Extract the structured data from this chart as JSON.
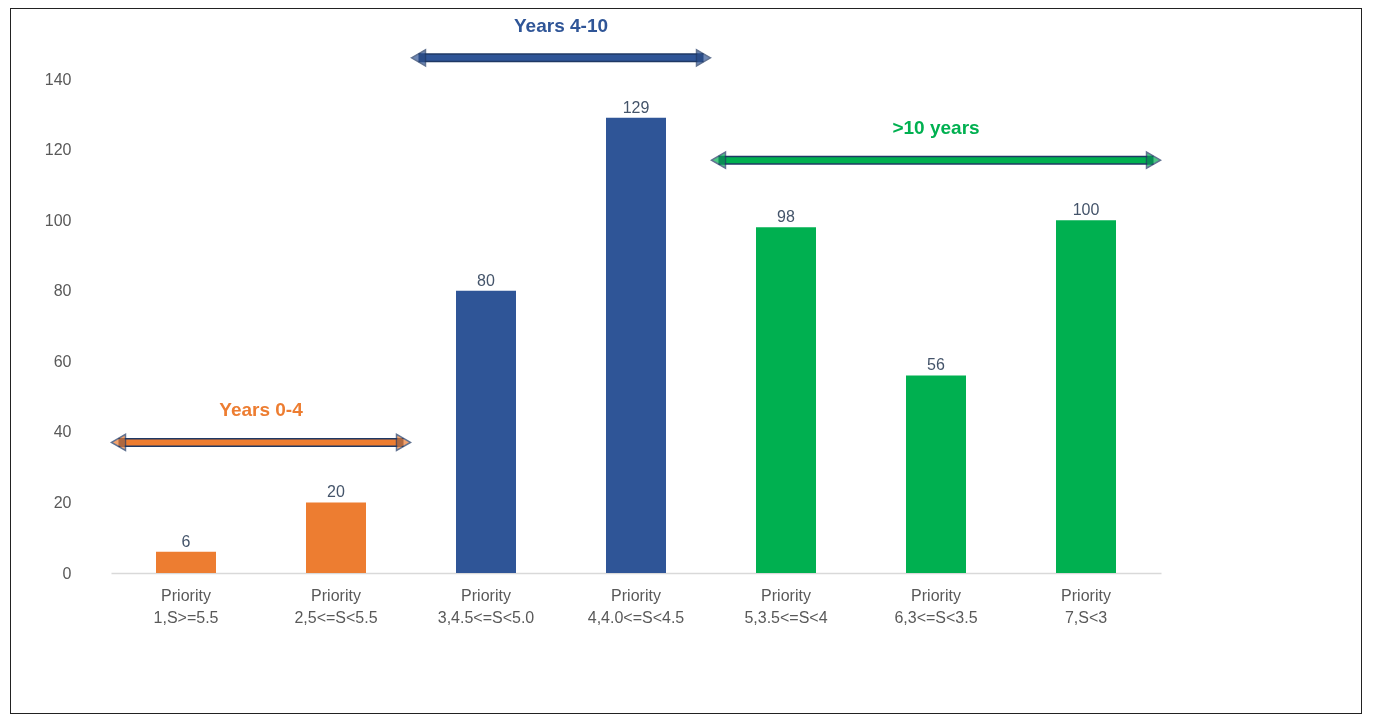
{
  "chart_data": {
    "type": "bar",
    "categories": [
      "Priority 1,S>=5.5",
      "Priority 2,5<=S<5.5",
      "Priority 3,4.5<=S<5.0",
      "Priority 4,4.0<=S<4.5",
      "Priority 5,3.5<=S<4",
      "Priority 6,3<=S<3.5",
      "Priority 7,S<3"
    ],
    "values": [
      6,
      20,
      80,
      129,
      98,
      56,
      100
    ],
    "colors": [
      "#ed7d31",
      "#ed7d31",
      "#2f5597",
      "#2f5597",
      "#00b050",
      "#00b050",
      "#00b050"
    ],
    "ylim": [
      0,
      140
    ],
    "yticks": [
      0,
      20,
      40,
      60,
      80,
      100,
      120,
      140
    ],
    "data_labels": true,
    "grid": false,
    "annotations": [
      "Years 0-4",
      "Years 4-10",
      ">10 years"
    ]
  }
}
